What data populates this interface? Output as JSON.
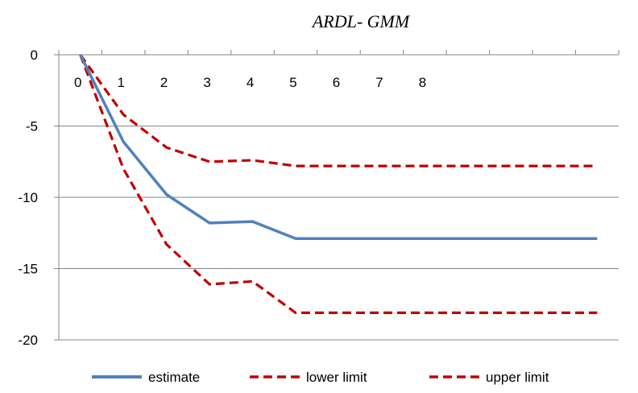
{
  "chart_data": {
    "type": "line",
    "title": "ARDL- GMM",
    "xlabel": "",
    "ylabel": "",
    "x": [
      0,
      1,
      2,
      3,
      4,
      5,
      6,
      7,
      8,
      9,
      10,
      11,
      12
    ],
    "x_tick_labels": [
      "0",
      "1",
      "2",
      "3",
      "4",
      "5",
      "6",
      "7",
      "8"
    ],
    "y_tick_labels": [
      "0",
      "-5",
      "-10",
      "-15",
      "-20"
    ],
    "ylim": [
      -20,
      0
    ],
    "xlim": [
      -0.5,
      12.5
    ],
    "grid": "horizontal",
    "legend_position": "bottom",
    "series": [
      {
        "name": "estimate",
        "color": "#4f81bd",
        "style": "solid",
        "values": [
          0,
          -6.1,
          -9.8,
          -11.8,
          -11.7,
          -12.9,
          -12.9,
          -12.9,
          -12.9,
          -12.9,
          -12.9,
          -12.9,
          -12.9
        ]
      },
      {
        "name": "lower limit",
        "color": "#c00000",
        "style": "dashed",
        "values": [
          0,
          -4.2,
          -6.5,
          -7.5,
          -7.4,
          -7.8,
          -7.8,
          -7.8,
          -7.8,
          -7.8,
          -7.8,
          -7.8,
          -7.8
        ]
      },
      {
        "name": "upper limit",
        "color": "#c00000",
        "style": "dashed",
        "values": [
          0,
          -8.0,
          -13.3,
          -16.1,
          -15.9,
          -18.1,
          -18.1,
          -18.1,
          -18.1,
          -18.1,
          -18.1,
          -18.1,
          -18.1
        ]
      }
    ]
  }
}
